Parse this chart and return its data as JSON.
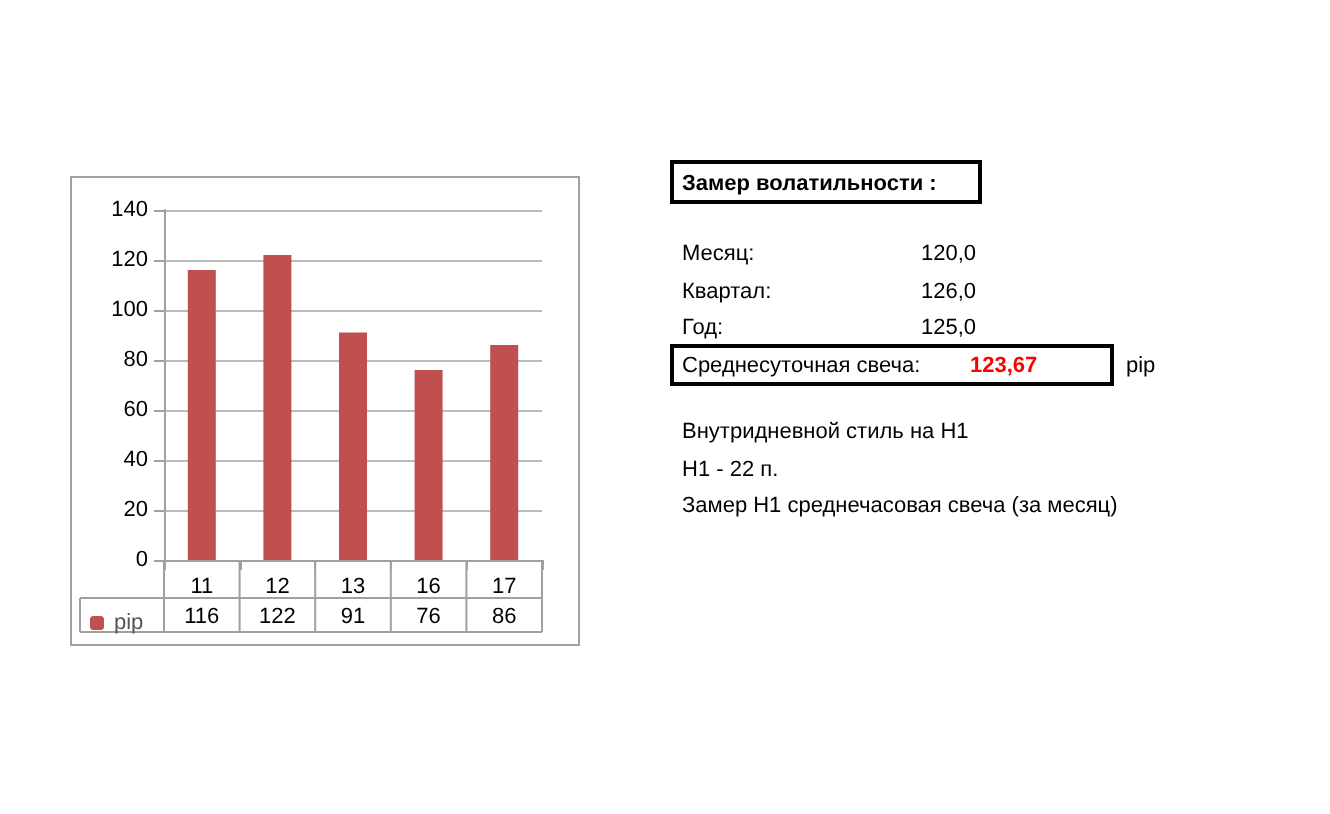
{
  "chart_data": {
    "type": "bar",
    "categories": [
      "11",
      "12",
      "13",
      "16",
      "17"
    ],
    "series": [
      {
        "name": "pip",
        "color": "#c0504d",
        "values": [
          116,
          122,
          91,
          76,
          86
        ]
      }
    ],
    "ylim": [
      0,
      140
    ],
    "yticks": [
      0,
      20,
      40,
      60,
      80,
      100,
      120,
      140
    ],
    "grid": "y",
    "legend": "bottom left",
    "data_labels": true,
    "annotations": [
      "Замер  волатильности  :",
      "Месяц:",
      "120,0",
      "Квартал:",
      "126,0",
      "Год:",
      "125,0",
      "Среднесуточная свеча:",
      "123,67",
      "pip",
      "Внутридневной стиль на H1",
      "H1 - 22 п.",
      "Замер H1 среднечасовая свеча (за месяц)"
    ]
  }
}
